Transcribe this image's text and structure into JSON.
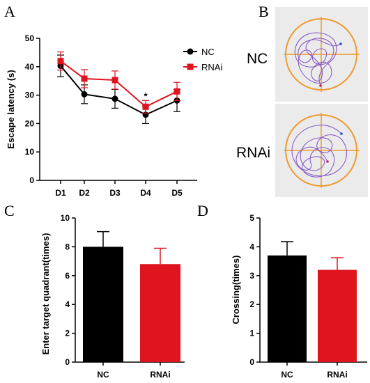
{
  "panels": {
    "A": "A",
    "B": "B",
    "C": "C",
    "D": "D"
  },
  "maze": {
    "nc_label": "NC",
    "rnai_label": "RNAi",
    "circle_color": "#ee9a2e",
    "path_color": "#8a5cc7",
    "background": "#ebebeb"
  },
  "colors": {
    "nc": "#000000",
    "rnai": "#e0141e"
  },
  "chart_data": [
    {
      "type": "line",
      "panel": "A",
      "xlabel": "",
      "ylabel": "Escape latency (s)",
      "categories": [
        "D1",
        "D2",
        "D3",
        "D4",
        "D5"
      ],
      "ylim": [
        0,
        50
      ],
      "yticks": [
        0,
        10,
        20,
        30,
        40,
        50
      ],
      "series": [
        {
          "name": "NC",
          "marker": "circle",
          "values": [
            40.3,
            30.3,
            28.7,
            23.1,
            28.1
          ],
          "errors": [
            3.8,
            3.3,
            3.3,
            3.1,
            3.9
          ]
        },
        {
          "name": "RNAi",
          "marker": "square",
          "values": [
            42.0,
            35.8,
            35.3,
            25.9,
            31.3
          ],
          "errors": [
            3.2,
            3.2,
            3.2,
            2.2,
            3.2
          ]
        }
      ],
      "annotations": [
        {
          "category": "D4",
          "text": "*"
        }
      ],
      "legend": "top-right"
    },
    {
      "type": "bar",
      "panel": "C",
      "xlabel": "",
      "ylabel": "Enter target quadrant(times)",
      "categories": [
        "NC",
        "RNAi"
      ],
      "values": [
        8.0,
        6.8
      ],
      "errors": [
        1.05,
        1.1
      ],
      "ylim": [
        0,
        10
      ],
      "yticks": [
        0,
        2,
        4,
        6,
        8,
        10
      ]
    },
    {
      "type": "bar",
      "panel": "D",
      "xlabel": "",
      "ylabel": "Crossing(times)",
      "categories": [
        "NC",
        "RNAi"
      ],
      "values": [
        3.7,
        3.2
      ],
      "errors": [
        0.48,
        0.42
      ],
      "ylim": [
        0,
        5
      ],
      "yticks": [
        0,
        1,
        2,
        3,
        4,
        5
      ]
    }
  ]
}
